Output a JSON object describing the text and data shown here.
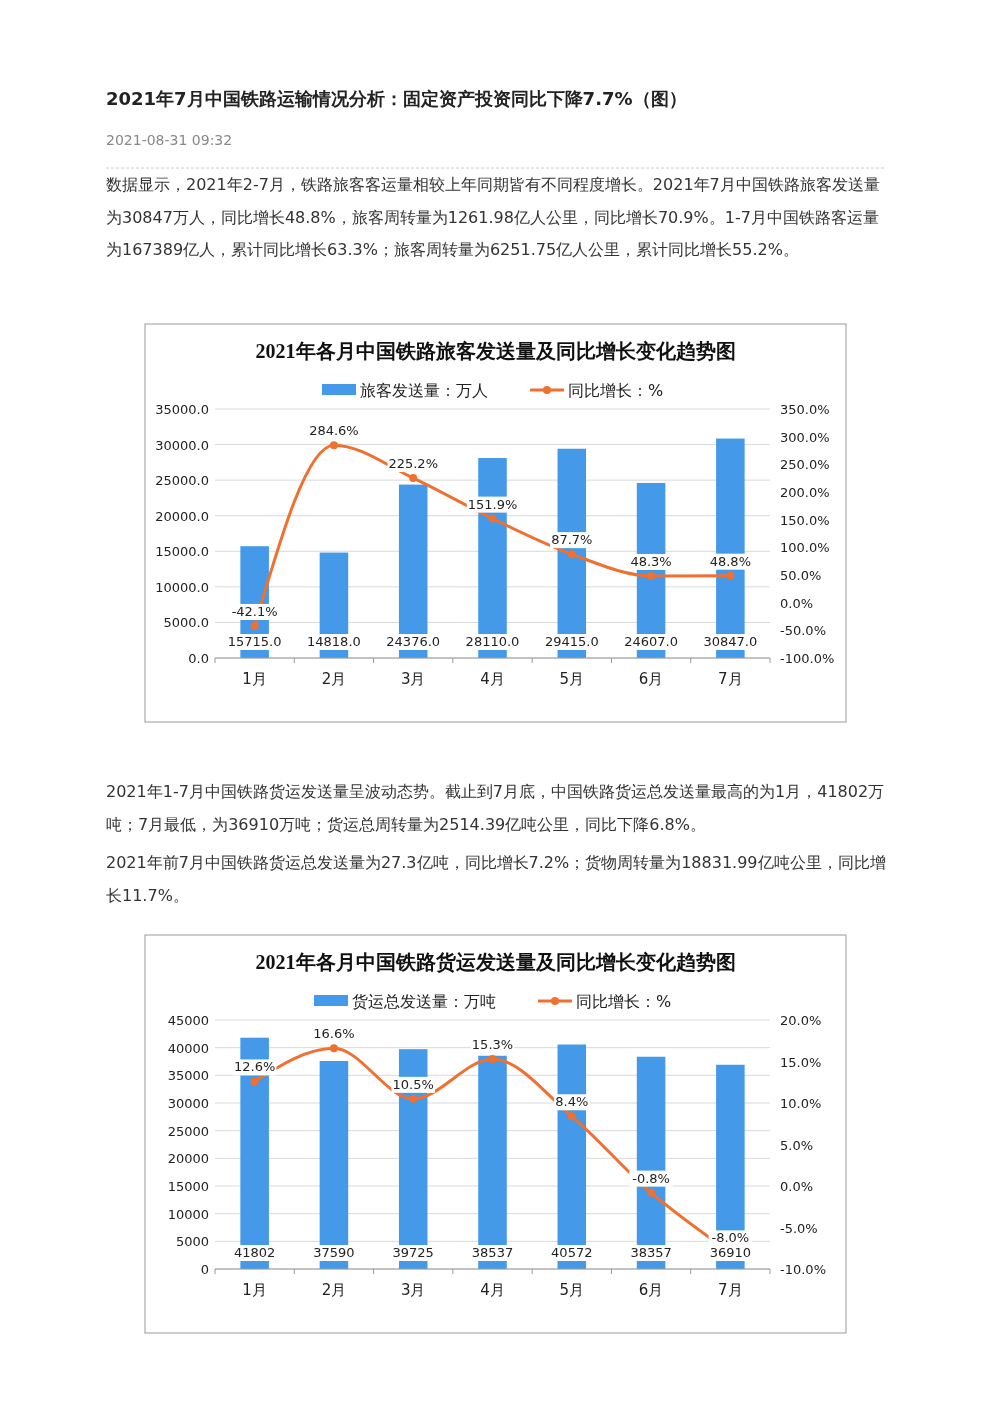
{
  "chart_data": [
    {
      "type": "bar",
      "title": "2021年各月中国铁路旅客发送量及同比增长变化趋势图",
      "annotations": [
        "2021年7月中国铁路运输情况分析：固定资产投资同比下降7.7%（图）",
        "2021-08-31 09:32",
        "数据显示，2021年2-7月，铁路旅客客运量相较上年同期皆有不同程度增长。2021年7月中国铁路旅客发送量为30847万人，同比增长48.8%，旅客周转量为1261.98亿人公里，同比增长70.9%。1-7月中国铁路客运量为167389亿人，累计同比增长63.3%；旅客周转量为6251.75亿人公里，累计同比增长55.2%。"
      ],
      "categories": [
        "1月",
        "2月",
        "3月",
        "4月",
        "5月",
        "6月",
        "7月"
      ],
      "series": [
        {
          "name": "旅客发送量：万人",
          "color": "#4499e9",
          "values": [
            15715,
            14818,
            24376,
            28110,
            29415,
            24607,
            30847
          ],
          "value_labels": [
            "15715.0",
            "14818.0",
            "24376.0",
            "28110.0",
            "29415.0",
            "24607.0",
            "30847.0"
          ]
        },
        {
          "type": "line",
          "name": "同比增长：%",
          "color": "#f07030",
          "axis": "y2",
          "values": [
            -42.1,
            284.6,
            225.2,
            151.9,
            87.7,
            48.3,
            48.8
          ],
          "value_labels": [
            "-42.1%",
            "284.6%",
            "225.2%",
            "151.9%",
            "87.7%",
            "48.3%",
            "48.8%"
          ]
        }
      ],
      "ylim": [
        0,
        35000
      ],
      "yticks": [
        {
          "value": 0,
          "label": "0.0"
        },
        {
          "value": 5000,
          "label": "5000.0"
        },
        {
          "value": 10000,
          "label": "10000.0"
        },
        {
          "value": 15000,
          "label": "15000.0"
        },
        {
          "value": 20000,
          "label": "20000.0"
        },
        {
          "value": 25000,
          "label": "25000.0"
        },
        {
          "value": 30000,
          "label": "30000.0"
        },
        {
          "value": 35000,
          "label": "35000.0"
        }
      ],
      "y2lim": [
        -100,
        350
      ],
      "y2ticks": [
        {
          "value": -100,
          "label": "-100.0%"
        },
        {
          "value": -50,
          "label": "-50.0%"
        },
        {
          "value": 0,
          "label": "0.0%"
        },
        {
          "value": 50,
          "label": "50.0%"
        },
        {
          "value": 100,
          "label": "100.0%"
        },
        {
          "value": 150,
          "label": "150.0%"
        },
        {
          "value": 200,
          "label": "200.0%"
        },
        {
          "value": 250,
          "label": "250.0%"
        },
        {
          "value": 300,
          "label": "300.0%"
        },
        {
          "value": 350,
          "label": "350.0%"
        }
      ],
      "grid": "y",
      "legend": "top",
      "marker": "circle"
    },
    {
      "type": "bar",
      "title": "2021年各月中国铁路货运发送量及同比增长变化趋势图",
      "annotations": [
        "2021年1-7月中国铁路货运发送量呈波动态势。截止到7月底，中国铁路货运总发送量最高的为1月，41802万吨；7月最低，为36910万吨；货运总周转量为2514.39亿吨公里，同比下降6.8%。",
        "2021年前7月中国铁路货运总发送量为27.3亿吨，同比增长7.2%；货物周转量为18831.99亿吨公里，同比增长11.7%。"
      ],
      "categories": [
        "1月",
        "2月",
        "3月",
        "4月",
        "5月",
        "6月",
        "7月"
      ],
      "series": [
        {
          "name": "货运总发送量：万吨",
          "color": "#4499e9",
          "values": [
            41802,
            37590,
            39725,
            38537,
            40572,
            38357,
            36910
          ],
          "value_labels": [
            "41802",
            "37590",
            "39725",
            "38537",
            "40572",
            "38357",
            "36910"
          ]
        },
        {
          "type": "line",
          "name": "同比增长：%",
          "color": "#f07030",
          "axis": "y2",
          "values": [
            12.6,
            16.6,
            10.5,
            15.3,
            8.4,
            -0.8,
            -8.0
          ],
          "value_labels": [
            "12.6%",
            "16.6%",
            "10.5%",
            "15.3%",
            "8.4%",
            "-0.8%",
            "-8.0%"
          ]
        }
      ],
      "ylim": [
        0,
        45000
      ],
      "yticks": [
        0,
        5000,
        10000,
        15000,
        20000,
        25000,
        30000,
        35000,
        40000,
        45000
      ],
      "y2lim": [
        -10,
        20
      ],
      "y2ticks": [
        {
          "value": -10,
          "label": "-10.0%"
        },
        {
          "value": -5,
          "label": "-5.0%"
        },
        {
          "value": 0,
          "label": "0.0%"
        },
        {
          "value": 5,
          "label": "5.0%"
        },
        {
          "value": 10,
          "label": "10.0%"
        },
        {
          "value": 15,
          "label": "15.0%"
        },
        {
          "value": 20,
          "label": "20.0%"
        }
      ],
      "grid": "y",
      "legend": "top",
      "marker": "circle"
    }
  ]
}
